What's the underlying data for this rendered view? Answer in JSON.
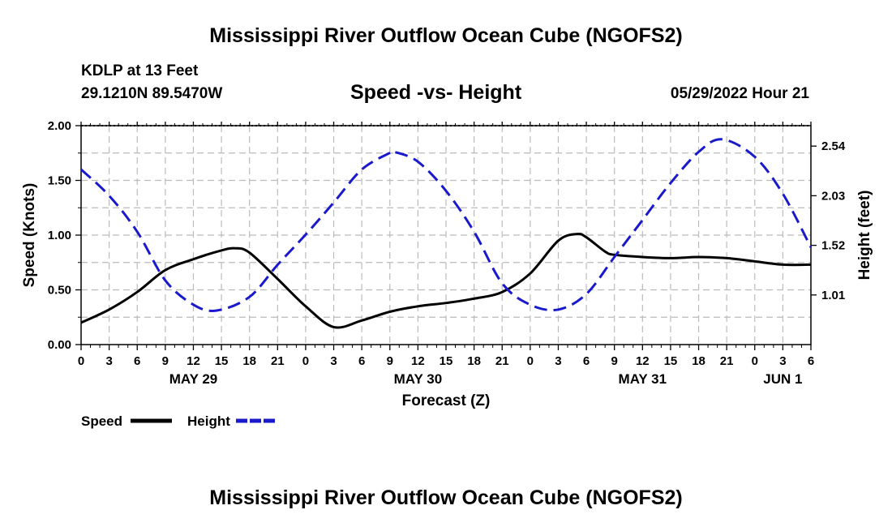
{
  "page": {
    "title_top": "Mississippi River Outflow Ocean Cube (NGOFS2)",
    "title_bottom": "Mississippi River Outflow Ocean Cube (NGOFS2)",
    "station": "KDLP at 13 Feet",
    "coords": "29.1210N  89.5470W",
    "subtitle": "Speed -vs- Height",
    "datetime": "05/29/2022 Hour 21"
  },
  "colors": {
    "speed": "#000000",
    "height": "#1a1acc",
    "grid": "#bbbbbb"
  },
  "chart_data": {
    "type": "line",
    "title": "Speed -vs- Height",
    "xlabel": "Forecast (Z)",
    "ylabel_left": "Speed (Knots)",
    "ylabel_right": "Height (feet)",
    "xlim": [
      0,
      78
    ],
    "ylim_left": [
      0,
      2.0
    ],
    "ylim_right": [
      0.5,
      2.75
    ],
    "x_ticks": [
      0,
      3,
      6,
      9,
      12,
      15,
      18,
      21,
      24,
      27,
      30,
      33,
      36,
      39,
      42,
      45,
      48,
      51,
      54,
      57,
      60,
      63,
      66,
      69,
      72,
      75,
      78
    ],
    "x_tick_labels": [
      "0",
      "3",
      "6",
      "9",
      "12",
      "15",
      "18",
      "21",
      "0",
      "3",
      "6",
      "9",
      "12",
      "15",
      "18",
      "21",
      "0",
      "3",
      "6",
      "9",
      "12",
      "15",
      "18",
      "21",
      "0",
      "3",
      "6"
    ],
    "date_labels": [
      {
        "x": 12,
        "label": "MAY 29"
      },
      {
        "x": 36,
        "label": "MAY 30"
      },
      {
        "x": 60,
        "label": "MAY 31"
      },
      {
        "x": 75,
        "label": "JUN 1"
      }
    ],
    "y_left_ticks": [
      0.0,
      0.5,
      1.0,
      1.5,
      2.0
    ],
    "y_left_tick_labels": [
      "0.00",
      "0.50",
      "1.00",
      "1.50",
      "2.00"
    ],
    "y_right_ticks": [
      1.01,
      1.52,
      2.03,
      2.54
    ],
    "y_right_tick_labels": [
      "1.01",
      "1.52",
      "2.03",
      "2.54"
    ],
    "grid": true,
    "series": [
      {
        "name": "Speed",
        "axis": "left",
        "style": "solid",
        "x": [
          0,
          3,
          6,
          9,
          12,
          15,
          16.5,
          18,
          21,
          24,
          27,
          30,
          33,
          36,
          39,
          42,
          45,
          48,
          51,
          53,
          54,
          56,
          57,
          60,
          63,
          66,
          69,
          72,
          75,
          78
        ],
        "values": [
          0.2,
          0.32,
          0.48,
          0.68,
          0.78,
          0.86,
          0.88,
          0.84,
          0.6,
          0.35,
          0.16,
          0.22,
          0.3,
          0.35,
          0.38,
          0.42,
          0.48,
          0.65,
          0.95,
          1.01,
          0.98,
          0.85,
          0.82,
          0.8,
          0.79,
          0.8,
          0.79,
          0.76,
          0.73,
          0.73
        ]
      },
      {
        "name": "Height",
        "axis": "right",
        "style": "dashed",
        "x": [
          0,
          3,
          6,
          9,
          12,
          14.5,
          18,
          21,
          24,
          27,
          30,
          33,
          33.5,
          36,
          39,
          42,
          45,
          48,
          51,
          54,
          57,
          60,
          63,
          66,
          68.5,
          72,
          75,
          78
        ],
        "values": [
          2.3,
          2.03,
          1.66,
          1.16,
          0.91,
          0.85,
          0.99,
          1.32,
          1.63,
          1.96,
          2.3,
          2.47,
          2.48,
          2.38,
          2.08,
          1.66,
          1.13,
          0.91,
          0.86,
          1.02,
          1.4,
          1.78,
          2.16,
          2.48,
          2.61,
          2.43,
          2.05,
          1.5
        ]
      }
    ],
    "legend": [
      {
        "label": "Speed",
        "series": "Speed"
      },
      {
        "label": "Height",
        "series": "Height"
      }
    ],
    "legend_position": "bottom-left"
  }
}
